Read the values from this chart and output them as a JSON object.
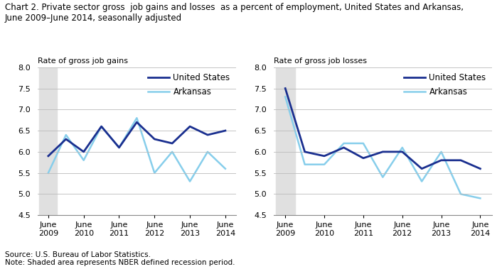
{
  "title_line1": "Chart 2. Private sector gross  job gains and losses  as a percent of employment, United States and Arkansas,",
  "title_line2": "June 2009–June 2014, seasonally adjusted",
  "left_ylabel": "Rate of gross job gains",
  "right_ylabel": "Rate of gross job losses",
  "source_note": "Source: U.S. Bureau of Labor Statistics.\nNote: Shaded area represents NBER defined recession period.",
  "ylim": [
    4.5,
    8.0
  ],
  "yticks": [
    4.5,
    5.0,
    5.5,
    6.0,
    6.5,
    7.0,
    7.5,
    8.0
  ],
  "x_labels": [
    "June\n2009",
    "June\n2010",
    "June\n2011",
    "June\n2012",
    "June\n2013",
    "June\n2014"
  ],
  "x_tick_pos": [
    0,
    2,
    4,
    6,
    8,
    10
  ],
  "x_data": [
    0,
    1,
    2,
    3,
    4,
    5,
    6,
    7,
    8,
    9,
    10
  ],
  "gains_us": [
    5.9,
    6.3,
    6.0,
    6.6,
    6.1,
    6.7,
    6.3,
    6.2,
    6.6,
    6.4,
    6.5
  ],
  "gains_ar": [
    5.5,
    6.4,
    5.8,
    6.6,
    6.1,
    6.8,
    5.5,
    6.0,
    5.3,
    6.0,
    5.6
  ],
  "losses_us": [
    7.5,
    6.0,
    5.9,
    6.1,
    5.85,
    6.0,
    6.0,
    5.6,
    5.8,
    5.8,
    5.6
  ],
  "losses_ar": [
    7.3,
    5.7,
    5.7,
    6.2,
    6.2,
    5.4,
    6.1,
    5.3,
    6.0,
    5.0,
    4.9
  ],
  "recession_xmin": -0.5,
  "recession_xmax": 0.5,
  "xlim_min": -0.6,
  "xlim_max": 10.6,
  "us_color": "#1a2f8f",
  "ar_color": "#87ceeb",
  "recession_color": "#e0e0e0",
  "bg_color": "#ffffff",
  "us_linewidth": 2.0,
  "ar_linewidth": 1.8,
  "grid_color": "#bbbbbb",
  "title_fontsize": 8.5,
  "axis_label_fontsize": 8.0,
  "tick_fontsize": 8.0,
  "legend_fontsize": 8.5,
  "note_fontsize": 7.5
}
